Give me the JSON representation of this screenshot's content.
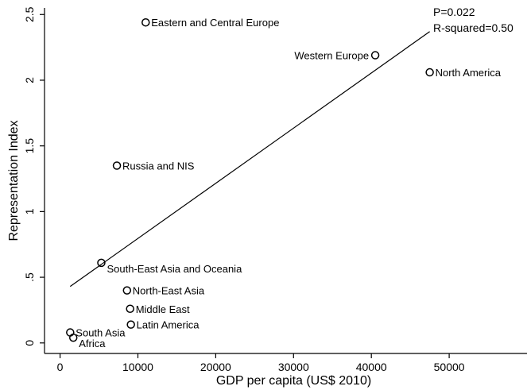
{
  "chart_data": {
    "type": "scatter",
    "title": "",
    "xlabel": "GDP per capita (US$ 2010)",
    "ylabel": "Representation Index",
    "xlim": [
      -2000,
      60000
    ],
    "ylim": [
      -0.08,
      2.55
    ],
    "x_ticks": [
      0,
      10000,
      20000,
      30000,
      40000,
      50000
    ],
    "x_tick_labels": [
      "0",
      "10000",
      "20000",
      "30000",
      "40000",
      "50000"
    ],
    "y_ticks": [
      0,
      0.5,
      1,
      1.5,
      2,
      2.5
    ],
    "y_tick_labels": [
      "0",
      ".5",
      "1",
      "1.5",
      "2",
      "2.5"
    ],
    "grid": false,
    "points": [
      {
        "label": "Eastern and Central Europe",
        "x": 11000,
        "y": 2.44,
        "label_side": "right"
      },
      {
        "label": "Western Europe",
        "x": 40500,
        "y": 2.19,
        "label_side": "left"
      },
      {
        "label": "North America",
        "x": 47500,
        "y": 2.06,
        "label_side": "right"
      },
      {
        "label": "Russia and NIS",
        "x": 7300,
        "y": 1.35,
        "label_side": "right"
      },
      {
        "label": "South-East Asia and Oceania",
        "x": 5300,
        "y": 0.61,
        "label_side": "right-below"
      },
      {
        "label": "North-East Asia",
        "x": 8600,
        "y": 0.4,
        "label_side": "right"
      },
      {
        "label": "Middle East",
        "x": 9000,
        "y": 0.26,
        "label_side": "right"
      },
      {
        "label": "Latin America",
        "x": 9100,
        "y": 0.14,
        "label_side": "right"
      },
      {
        "label": "South Asia",
        "x": 1300,
        "y": 0.08,
        "label_side": "right"
      },
      {
        "label": "Africa",
        "x": 1700,
        "y": 0.04,
        "label_side": "right-below"
      }
    ],
    "fit_line": {
      "x": [
        1300,
        47500
      ],
      "y": [
        0.43,
        2.37
      ]
    },
    "annotations": [
      "P=0.022",
      "R-squared=0.50"
    ]
  }
}
